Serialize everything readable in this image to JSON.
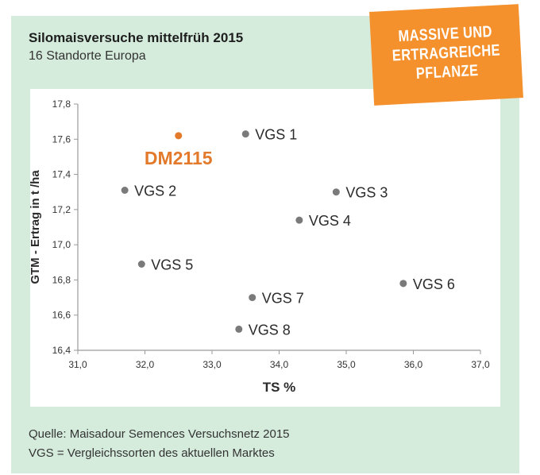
{
  "title": "Silomaisversuche mittelfrüh 2015",
  "subtitle": "16 Standorte Europa",
  "badge": {
    "lines": [
      "MASSIVE UND",
      "ERTRAGREICHE",
      "PFLANZE"
    ],
    "color": "#f5912c"
  },
  "source": "Quelle: Maisadour Semences Versuchsnetz 2015",
  "legend_note": "VGS = Vergleichssorten des aktuellen Marktes",
  "chart_data": {
    "type": "scatter",
    "xlabel": "TS %",
    "ylabel": "GTM - Ertrag in t /ha",
    "xlim": [
      31.0,
      37.0
    ],
    "ylim": [
      16.4,
      17.8
    ],
    "x_ticks": [
      "31,0",
      "32,0",
      "33,0",
      "34,0",
      "35,0",
      "36,0",
      "37,0"
    ],
    "y_ticks": [
      "16,4",
      "16,6",
      "16,8",
      "17,0",
      "17,2",
      "17,4",
      "17,6",
      "17,8"
    ],
    "grid": false,
    "colors": {
      "highlight": "#e2792b",
      "point": "#7a7a7a",
      "axis": "#9a9a9a"
    },
    "points": [
      {
        "label": "DM2115",
        "x": 32.5,
        "y": 17.62,
        "highlight": true
      },
      {
        "label": "VGS 1",
        "x": 33.5,
        "y": 17.63
      },
      {
        "label": "VGS 2",
        "x": 31.7,
        "y": 17.31
      },
      {
        "label": "VGS 3",
        "x": 34.85,
        "y": 17.3
      },
      {
        "label": "VGS 4",
        "x": 34.3,
        "y": 17.14
      },
      {
        "label": "VGS 5",
        "x": 31.95,
        "y": 16.89
      },
      {
        "label": "VGS 6",
        "x": 35.85,
        "y": 16.78
      },
      {
        "label": "VGS 7",
        "x": 33.6,
        "y": 16.7
      },
      {
        "label": "VGS 8",
        "x": 33.4,
        "y": 16.52
      }
    ]
  }
}
